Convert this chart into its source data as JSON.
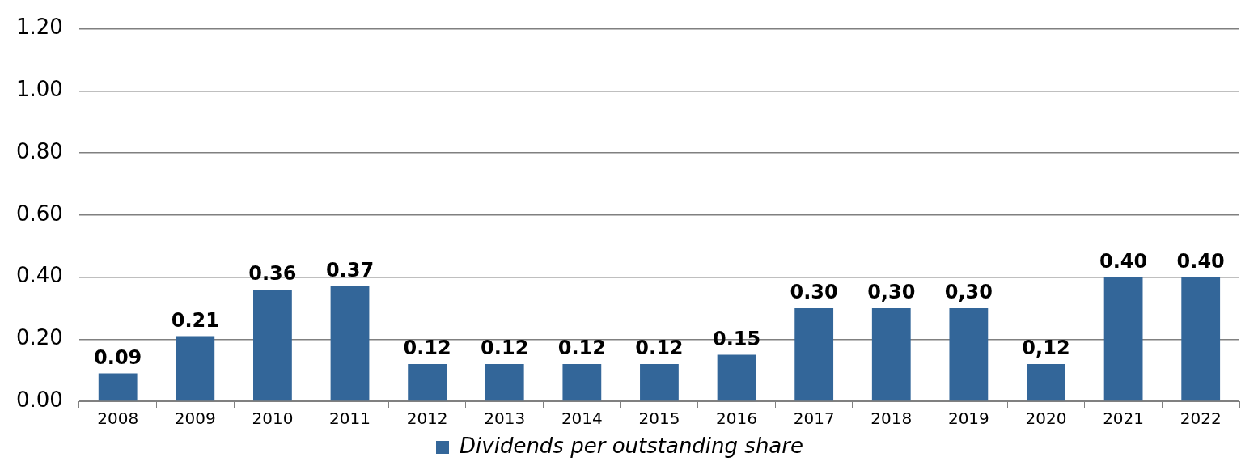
{
  "chart_data": {
    "type": "bar",
    "categories": [
      "2008",
      "2009",
      "2010",
      "2011",
      "2012",
      "2013",
      "2014",
      "2015",
      "2016",
      "2017",
      "2018",
      "2019",
      "2020",
      "2021",
      "2022"
    ],
    "series": [
      {
        "name": "Dividends per outstanding share",
        "color": "#336699",
        "values": [
          0.09,
          0.21,
          0.36,
          0.37,
          0.12,
          0.12,
          0.12,
          0.12,
          0.15,
          0.3,
          0.3,
          0.3,
          0.12,
          0.4,
          0.4
        ],
        "value_labels": [
          "0.09",
          "0.21",
          "0.36",
          "0.37",
          "0.12",
          "0.12",
          "0.12",
          "0.12",
          "0.15",
          "0.30",
          "0,30",
          "0,30",
          "0,12",
          "0.40",
          "0.40"
        ]
      }
    ],
    "ylim": [
      0,
      1.2
    ],
    "yticks": [
      {
        "value": 0,
        "label": "0.00"
      },
      {
        "value": 0.2,
        "label": "0.20"
      },
      {
        "value": 0.4,
        "label": "0.40"
      },
      {
        "value": 0.6,
        "label": "0.60"
      },
      {
        "value": 0.8,
        "label": "0.80"
      },
      {
        "value": 1.0,
        "label": "1.00"
      },
      {
        "value": 1.2,
        "label": "1.20"
      }
    ],
    "grid": "y",
    "legend": "bottom"
  }
}
